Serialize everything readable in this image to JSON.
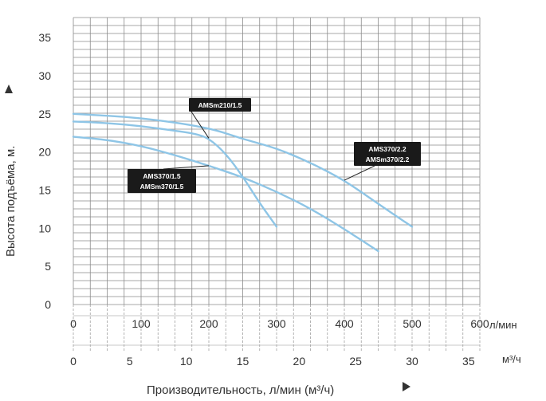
{
  "chart_data": {
    "type": "line",
    "title": "",
    "ylabel": "Высота подъёма, м.",
    "xlabel": "Производительность, л/мин (м³/ч)",
    "x_units": [
      "л/мин",
      "м³/ч"
    ],
    "xlim": [
      0,
      600
    ],
    "ylim": [
      0,
      37
    ],
    "x_ticks_lmin": [
      "0",
      "100",
      "200",
      "300",
      "400",
      "500",
      "600"
    ],
    "x_ticks_m3h": [
      "0",
      "5",
      "10",
      "15",
      "20",
      "25",
      "30",
      "35"
    ],
    "y_ticks": [
      "0",
      "5",
      "10",
      "15",
      "20",
      "25",
      "30",
      "35"
    ],
    "grid": true,
    "line_color": "#8ec5e6",
    "series": [
      {
        "name": "AMSm210/1.5",
        "x": [
          0,
          50,
          100,
          150,
          180,
          200,
          225,
          250,
          275,
          300
        ],
        "y": [
          24,
          23.8,
          23.4,
          22.8,
          22.4,
          21.8,
          19.8,
          16.8,
          13.3,
          10.2
        ]
      },
      {
        "name": "AMS370/2.2\nAMSm370/2.2",
        "x": [
          0,
          100,
          200,
          250,
          300,
          350,
          400,
          450,
          500
        ],
        "y": [
          25,
          24.5,
          23.2,
          21.7,
          20.5,
          18.6,
          16.3,
          13.2,
          10.2
        ]
      },
      {
        "name": "AMS370/1.5\nAMSm370/1.5",
        "x": [
          0,
          50,
          100,
          150,
          200,
          250,
          300,
          350,
          400,
          450
        ],
        "y": [
          22,
          21.6,
          20.8,
          19.6,
          18.2,
          16.7,
          14.8,
          12.6,
          9.9,
          7.0
        ]
      }
    ]
  }
}
